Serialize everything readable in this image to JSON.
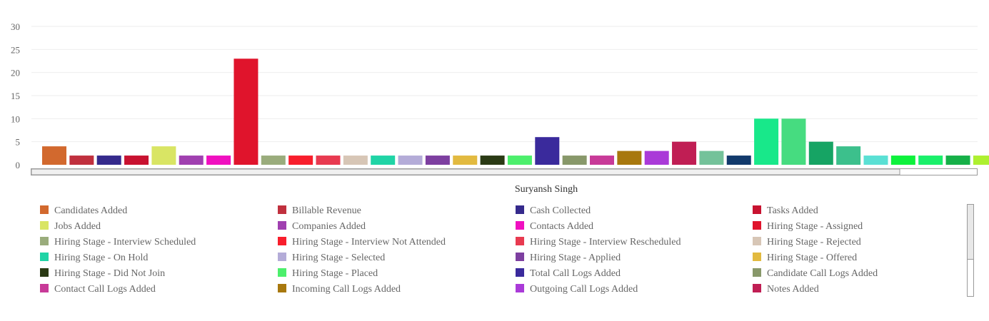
{
  "chart_data": {
    "type": "bar",
    "title": "",
    "xlabel": "Suryansh Singh",
    "ylabel": "",
    "ylim": [
      0,
      30
    ],
    "yticks": [
      0,
      5,
      10,
      15,
      20,
      25,
      30
    ],
    "grid": true,
    "legend_position": "bottom",
    "series": [
      {
        "name": "Candidates Added",
        "value": 4,
        "color": "#d2692e"
      },
      {
        "name": "Billable Revenue",
        "value": 2,
        "color": "#c0303e"
      },
      {
        "name": "Cash Collected",
        "value": 2,
        "color": "#352a8c"
      },
      {
        "name": "Tasks Added",
        "value": 2,
        "color": "#c81230"
      },
      {
        "name": "Jobs Added",
        "value": 4,
        "color": "#d9e564"
      },
      {
        "name": "Companies Added",
        "value": 2,
        "color": "#a040b0"
      },
      {
        "name": "Contacts Added",
        "value": 2,
        "color": "#f010c0"
      },
      {
        "name": "Hiring Stage - Assigned",
        "value": 23,
        "color": "#e0142c"
      },
      {
        "name": "Hiring Stage - Interview Scheduled",
        "value": 2,
        "color": "#9aac7c"
      },
      {
        "name": "Hiring Stage - Interview Not Attended",
        "value": 2,
        "color": "#f81e2c"
      },
      {
        "name": "Hiring Stage - Interview Rescheduled",
        "value": 2,
        "color": "#e83a50"
      },
      {
        "name": "Hiring Stage - Rejected",
        "value": 2,
        "color": "#d7c6b6"
      },
      {
        "name": "Hiring Stage - On Hold",
        "value": 2,
        "color": "#20d4a6"
      },
      {
        "name": "Hiring Stage - Selected",
        "value": 2,
        "color": "#b4acd8"
      },
      {
        "name": "Hiring Stage - Applied",
        "value": 2,
        "color": "#7d3fa0"
      },
      {
        "name": "Hiring Stage - Offered",
        "value": 2,
        "color": "#e2ba40"
      },
      {
        "name": "Hiring Stage - Did Not Join",
        "value": 2,
        "color": "#2a3a14"
      },
      {
        "name": "Hiring Stage - Placed",
        "value": 2,
        "color": "#4cef6c"
      },
      {
        "name": "Total Call Logs Added",
        "value": 6,
        "color": "#3a2a9c"
      },
      {
        "name": "Candidate Call Logs Added",
        "value": 2,
        "color": "#88986a"
      },
      {
        "name": "Contact Call Logs Added",
        "value": 2,
        "color": "#c83a98"
      },
      {
        "name": "Incoming Call Logs Added",
        "value": 3,
        "color": "#a8780e"
      },
      {
        "name": "Outgoing Call Logs Added",
        "value": 3,
        "color": "#aa3ad8"
      },
      {
        "name": "Notes Added",
        "value": 5,
        "color": "#c01e54"
      },
      {
        "name": "",
        "value": 3,
        "color": "#74c29a"
      },
      {
        "name": "",
        "value": 2,
        "color": "#123a6c"
      },
      {
        "name": "",
        "value": 10,
        "color": "#18e88a"
      },
      {
        "name": "",
        "value": 10,
        "color": "#46dc80"
      },
      {
        "name": "",
        "value": 5,
        "color": "#16a464"
      },
      {
        "name": "",
        "value": 4,
        "color": "#3cc08c"
      },
      {
        "name": "",
        "value": 2,
        "color": "#5ae0d4"
      },
      {
        "name": "",
        "value": 2,
        "color": "#0ef23c"
      },
      {
        "name": "",
        "value": 2,
        "color": "#1af06a"
      },
      {
        "name": "",
        "value": 2,
        "color": "#16b048"
      },
      {
        "name": "",
        "value": 2,
        "color": "#aef030"
      }
    ]
  }
}
